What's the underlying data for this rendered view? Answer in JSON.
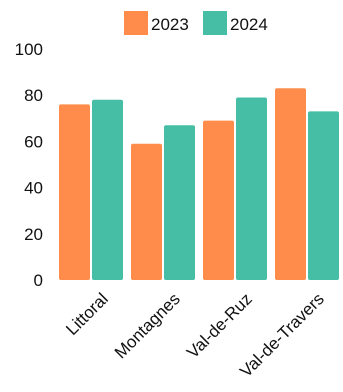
{
  "chart_data": {
    "type": "bar",
    "categories": [
      "Littoral",
      "Montagnes",
      "Val-de-Ruz",
      "Val-de-Travers"
    ],
    "series": [
      {
        "name": "2023",
        "values": [
          76,
          59,
          69,
          83
        ],
        "color": "#FF8C4B"
      },
      {
        "name": "2024",
        "values": [
          78,
          67,
          79,
          73
        ],
        "color": "#45BEA5"
      }
    ],
    "yticks": [
      0,
      20,
      40,
      60,
      80,
      100
    ],
    "ylim": [
      0,
      100
    ],
    "grid": false,
    "legend_position": "top"
  }
}
